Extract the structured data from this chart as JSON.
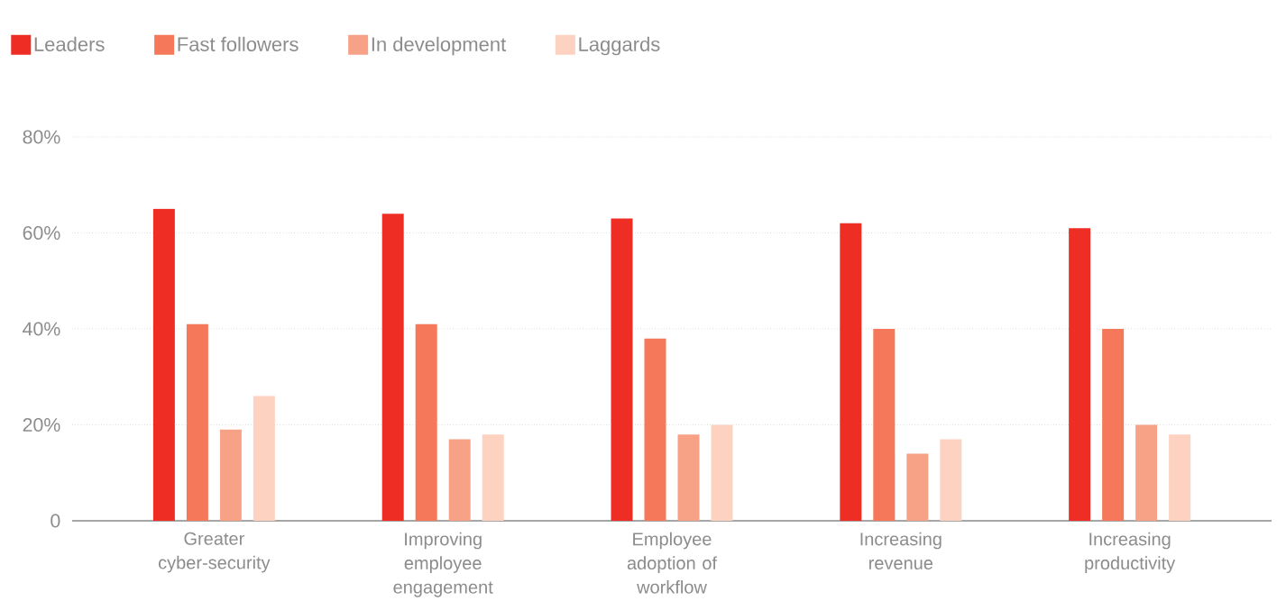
{
  "chart_data": {
    "type": "bar",
    "categories": [
      "Greater cyber-security",
      "Improving employee engagement",
      "Employee adoption of workflow",
      "Increasing revenue",
      "Increasing productivity"
    ],
    "series": [
      {
        "name": "Leaders",
        "color": "#ee2e24",
        "values": [
          65,
          64,
          63,
          62,
          61
        ]
      },
      {
        "name": "Fast followers",
        "color": "#f47859",
        "values": [
          41,
          41,
          38,
          40,
          40
        ]
      },
      {
        "name": "In development",
        "color": "#f7a286",
        "values": [
          19,
          17,
          18,
          14,
          20
        ]
      },
      {
        "name": "Laggards",
        "color": "#fdd2c1",
        "values": [
          26,
          18,
          20,
          17,
          18
        ]
      }
    ],
    "ylim": [
      0,
      80
    ],
    "yticks": [
      0,
      {
        "value": 20,
        "label": "20%"
      },
      {
        "value": 40,
        "label": "40%"
      },
      {
        "value": 60,
        "label": "60%"
      },
      {
        "value": 80,
        "label": "80%"
      }
    ],
    "grid": "y",
    "legend": "top left"
  }
}
